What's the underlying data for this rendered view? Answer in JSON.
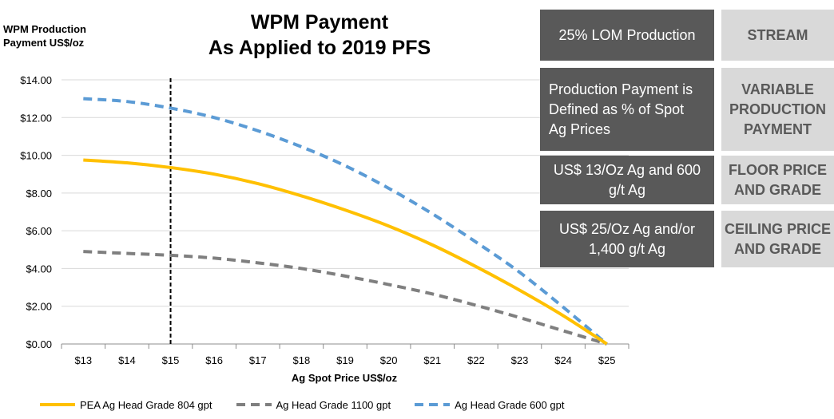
{
  "chart_data": {
    "type": "line",
    "title": "WPM Payment\nAs Applied to 2019 PFS",
    "ylabel": "WPM Production Payment US$/oz",
    "xlabel": "Ag Spot Price US$/oz",
    "x": [
      13,
      14,
      15,
      16,
      17,
      18,
      19,
      20,
      21,
      22,
      23,
      24,
      25
    ],
    "x_tick_labels": [
      "$13",
      "$14",
      "$15",
      "$16",
      "$17",
      "$18",
      "$19",
      "$20",
      "$21",
      "$22",
      "$23",
      "$24",
      "$25"
    ],
    "ylim": [
      0,
      14
    ],
    "y_tick_labels": [
      "$0.00",
      "$2.00",
      "$4.00",
      "$6.00",
      "$8.00",
      "$10.00",
      "$12.00",
      "$14.00"
    ],
    "grid": "horizontal",
    "legend_position": "bottom",
    "reference_line": {
      "x": 15,
      "style": "dashed",
      "color": "#000000"
    },
    "series": [
      {
        "name": "PEA Ag Head Grade 804 gpt",
        "color": "#ffc000",
        "style": "solid",
        "values": [
          9.75,
          9.6,
          9.35,
          9.0,
          8.5,
          7.85,
          7.1,
          6.25,
          5.25,
          4.1,
          2.85,
          1.5,
          0
        ]
      },
      {
        "name": "Ag Head Grade 1100 gpt",
        "color": "#7f7f7f",
        "style": "dashed",
        "values": [
          4.9,
          4.8,
          4.7,
          4.55,
          4.3,
          4.0,
          3.6,
          3.15,
          2.65,
          2.05,
          1.4,
          0.7,
          0
        ]
      },
      {
        "name": "Ag Head Grade 600 gpt",
        "color": "#5b9bd5",
        "style": "dashed",
        "values": [
          13.0,
          12.85,
          12.5,
          12.0,
          11.3,
          10.45,
          9.45,
          8.25,
          6.9,
          5.4,
          3.8,
          1.95,
          0
        ]
      }
    ]
  },
  "table": {
    "rows": [
      {
        "value": "25% LOM Production",
        "label": "STREAM"
      },
      {
        "value": "Production Payment is\nDefined as % of Spot\nAg Prices",
        "label": "VARIABLE\nPRODUCTION\nPAYMENT"
      },
      {
        "value": "US$ 13/Oz Ag and 600\ng/t Ag",
        "label": "FLOOR PRICE\nAND GRADE"
      },
      {
        "value": "US$ 25/Oz Ag and/or\n1,400 g/t Ag",
        "label": "CEILING PRICE\nAND GRADE"
      }
    ],
    "colors": {
      "value_bg": "#595959",
      "label_bg": "#d9d9d9",
      "label_text": "#595959"
    }
  }
}
